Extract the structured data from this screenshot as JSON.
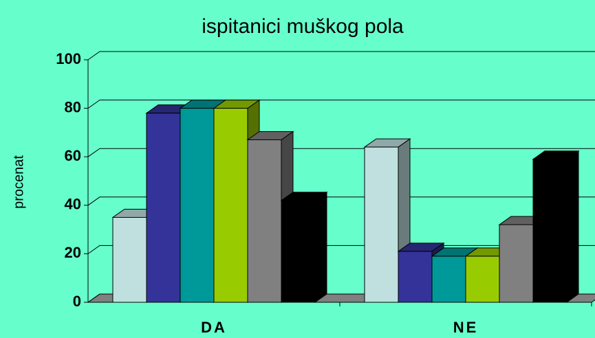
{
  "chart_data": {
    "type": "bar3d",
    "title": "ispitanici muškog pola",
    "y_label": "procenat",
    "categories": [
      "DA",
      "NE"
    ],
    "series": [
      {
        "color": "#c0e0e0",
        "values": [
          35,
          64
        ]
      },
      {
        "color": "#333399",
        "values": [
          78,
          21
        ]
      },
      {
        "color": "#009999",
        "values": [
          80,
          19
        ]
      },
      {
        "color": "#99cc00",
        "values": [
          80,
          19
        ]
      },
      {
        "color": "#808080",
        "values": [
          67,
          32
        ]
      },
      {
        "color": "#000000",
        "values": [
          42,
          59
        ]
      }
    ],
    "ylim": [
      0,
      100
    ],
    "yticks": [
      0,
      20,
      40,
      60,
      80,
      100
    ],
    "grid": true
  }
}
